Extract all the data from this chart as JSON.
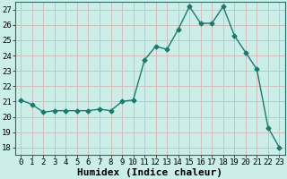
{
  "x": [
    0,
    1,
    2,
    3,
    4,
    5,
    6,
    7,
    8,
    9,
    10,
    11,
    12,
    13,
    14,
    15,
    16,
    17,
    18,
    19,
    20,
    21,
    22,
    23
  ],
  "y": [
    21.1,
    20.8,
    20.3,
    20.4,
    20.4,
    20.4,
    20.4,
    20.5,
    20.4,
    21.0,
    21.1,
    23.7,
    24.6,
    24.4,
    25.7,
    27.2,
    26.1,
    26.1,
    27.2,
    25.3,
    24.2,
    23.1,
    19.3,
    18.0
  ],
  "line_color": "#1a7a6e",
  "marker": "D",
  "marker_size": 2.5,
  "bg_color": "#cceee8",
  "grid_color": "#b0d8d0",
  "xlabel": "Humidex (Indice chaleur)",
  "ylim": [
    17.5,
    27.5
  ],
  "xlim": [
    -0.5,
    23.5
  ],
  "yticks": [
    18,
    19,
    20,
    21,
    22,
    23,
    24,
    25,
    26,
    27
  ],
  "xtick_labels": [
    "0",
    "1",
    "2",
    "3",
    "4",
    "5",
    "6",
    "7",
    "8",
    "9",
    "10",
    "11",
    "12",
    "13",
    "14",
    "15",
    "16",
    "17",
    "18",
    "19",
    "20",
    "21",
    "22",
    "23"
  ],
  "tick_fontsize": 6.5,
  "xlabel_fontsize": 8,
  "spine_color": "#2a6e68"
}
